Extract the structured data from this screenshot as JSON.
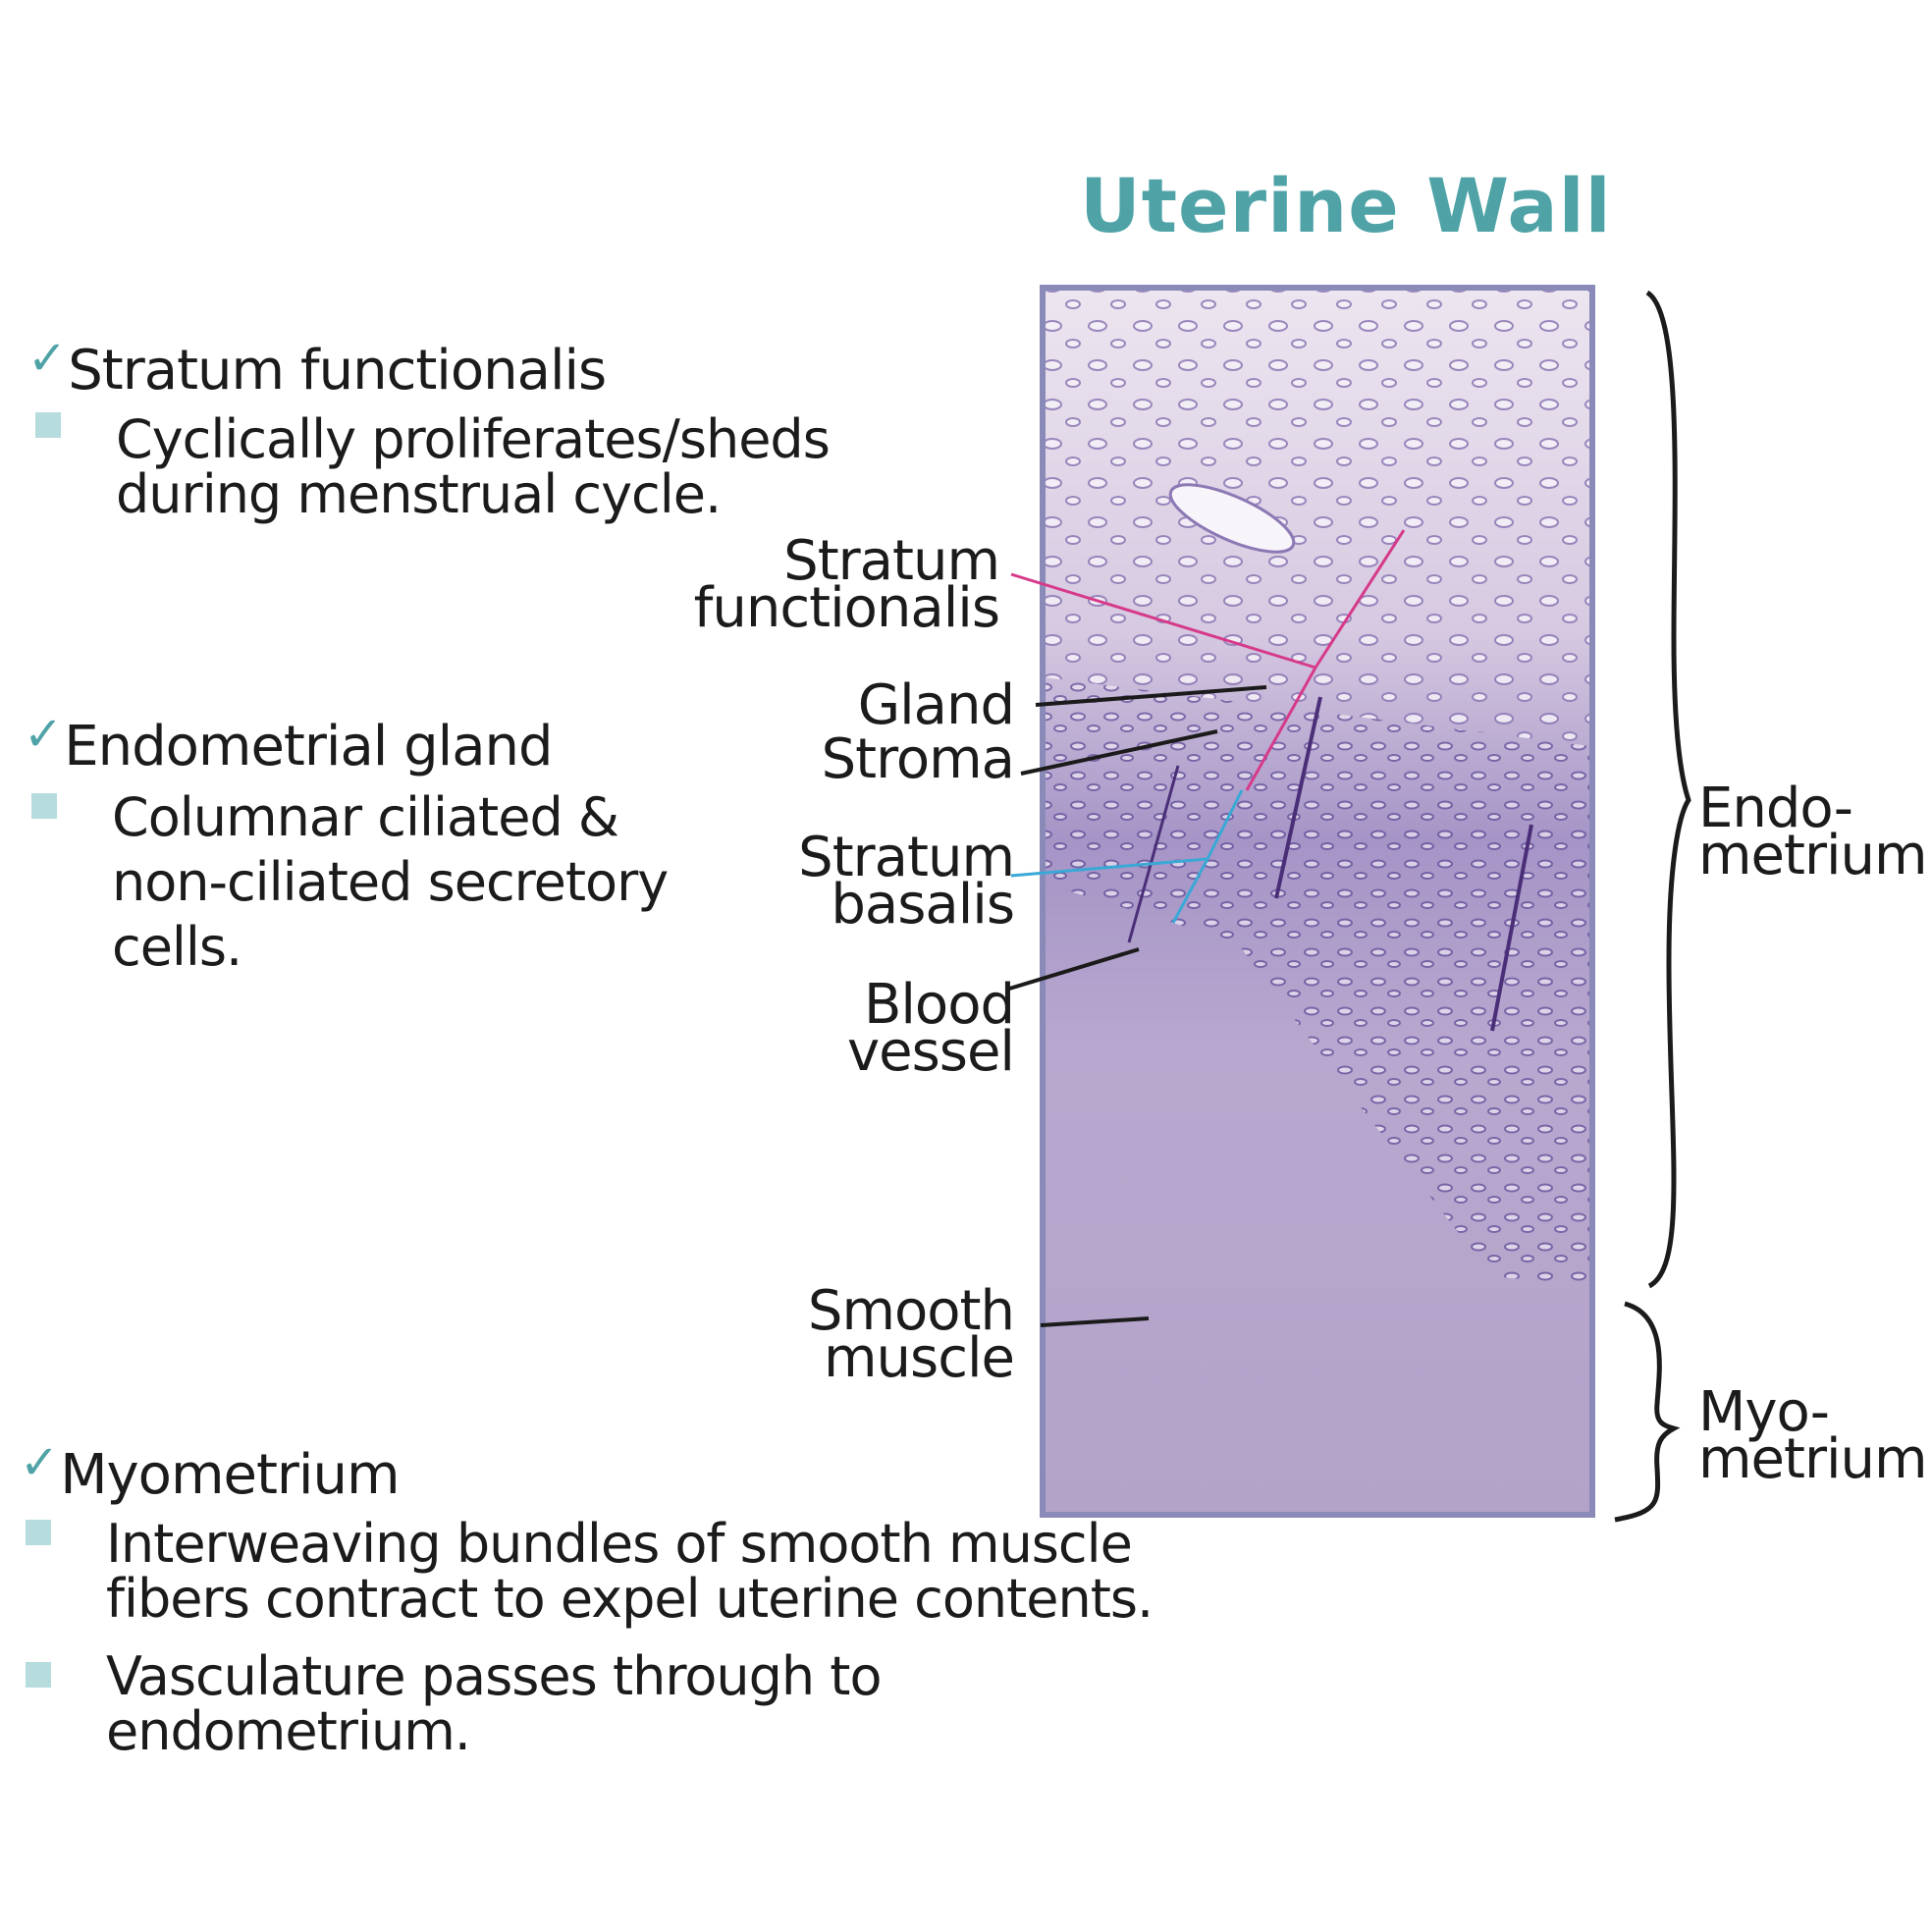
{
  "title": "Uterine Wall",
  "colors": {
    "accent": "#4fa3a7",
    "bullet": "#b6dcde",
    "functionalis_line": "#d63a8a",
    "basalis_line": "#3aa8d6",
    "tissue_border": "#8a8ab8"
  },
  "sections": [
    {
      "heading": "Stratum functionalis",
      "bullets": [
        "Cyclically proliferates/sheds\nduring menstrual cycle."
      ]
    },
    {
      "heading": "Endometrial gland",
      "bullets": [
        "Columnar ciliated &\nnon-ciliated secretory\ncells."
      ]
    },
    {
      "heading": "Myometrium",
      "bullets": [
        "Interweaving bundles of smooth muscle\nfibers contract to expel uterine contents.",
        "Vasculature passes through to\nendometrium."
      ]
    }
  ],
  "labels": {
    "stratum_functionalis": "Stratum\nfunctionalis",
    "gland": "Gland",
    "stroma": "Stroma",
    "stratum_basalis": "Stratum\nbasalis",
    "blood_vessel": "Blood\nvessel",
    "smooth_muscle": "Smooth\nmuscle",
    "endometrium": "Endo-\nmetrium",
    "myometrium": "Myo-\nmetrium"
  }
}
